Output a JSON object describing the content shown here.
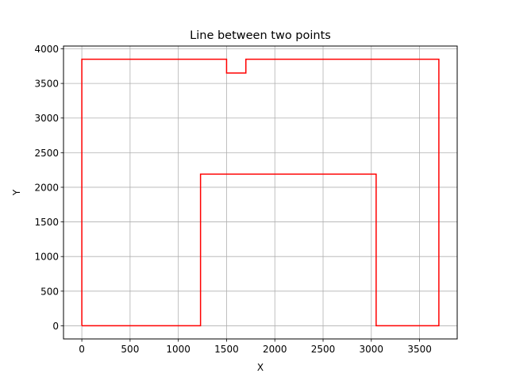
{
  "chart_data": {
    "type": "line",
    "title": "Line between two points",
    "xlabel": "X",
    "ylabel": "Y",
    "xlim": [
      -190,
      3890
    ],
    "ylim": [
      -190,
      4040
    ],
    "xticks": [
      0,
      500,
      1000,
      1500,
      2000,
      2500,
      3000,
      3500
    ],
    "yticks": [
      0,
      500,
      1000,
      1500,
      2000,
      2500,
      3000,
      3500,
      4000
    ],
    "grid": true,
    "series": [
      {
        "color": "#ff0000",
        "x": [
          0,
          0,
          1500,
          1500,
          1700,
          1700,
          3700,
          3700,
          3050,
          3050,
          1230,
          1230,
          0
        ],
        "y": [
          0,
          3850,
          3850,
          3650,
          3650,
          3850,
          3850,
          0,
          0,
          2190,
          2190,
          0,
          0
        ]
      }
    ]
  }
}
